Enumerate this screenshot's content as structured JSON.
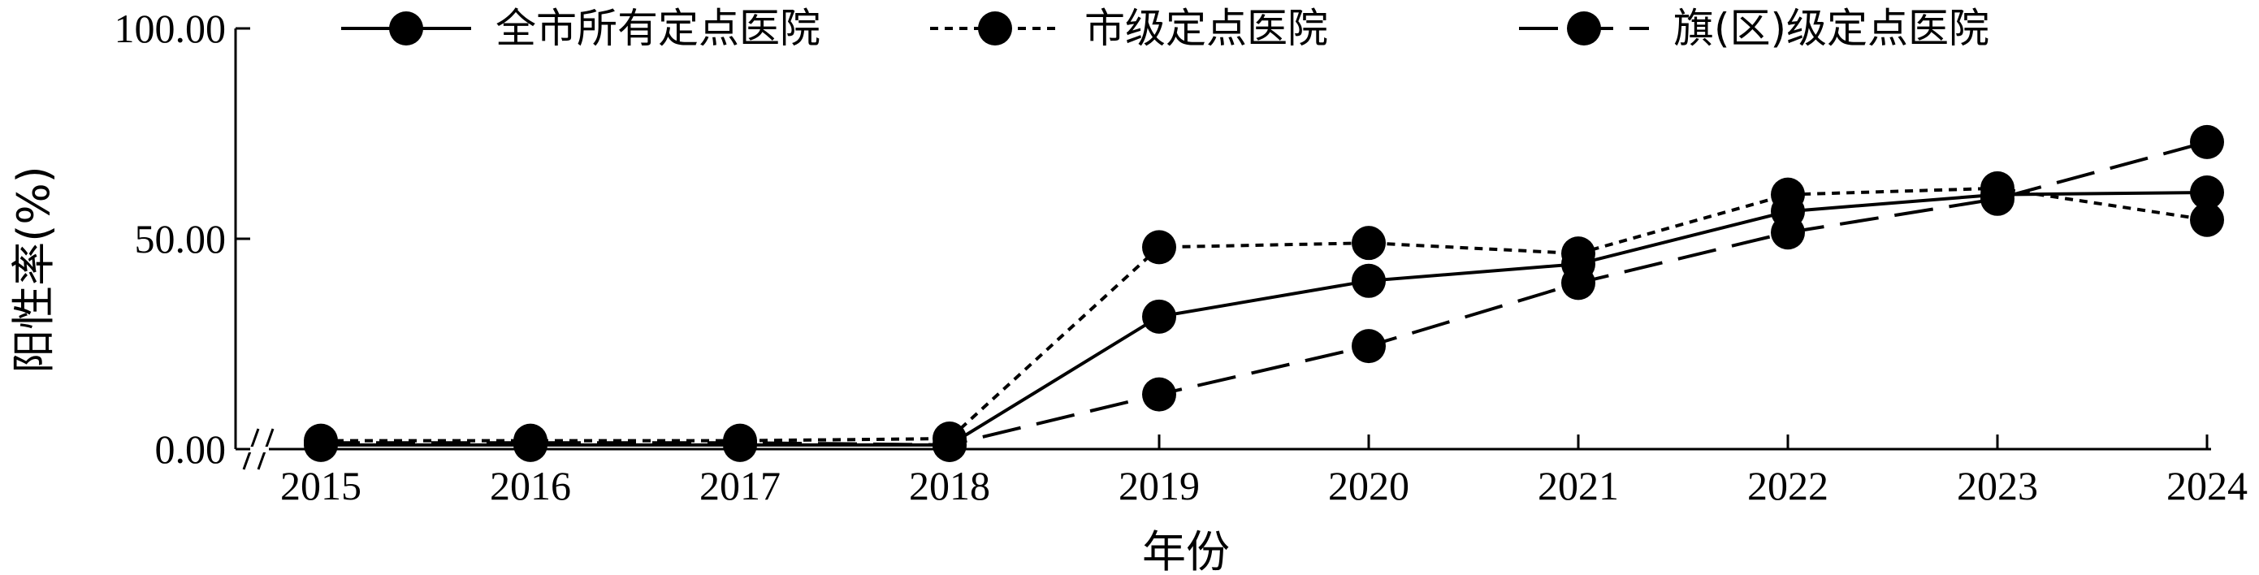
{
  "chart_data": {
    "type": "line",
    "xlabel": "年份",
    "ylabel": "阳性率(%)",
    "categories": [
      "2015",
      "2016",
      "2017",
      "2018",
      "2019",
      "2020",
      "2021",
      "2022",
      "2023",
      "2024"
    ],
    "ylim": [
      0,
      100
    ],
    "yticks": [
      "0.00",
      "50.00",
      "100.00"
    ],
    "axis_break": "y-axis near origin",
    "legend_position": "top",
    "series": [
      {
        "name": "全市所有定点医院",
        "style": "solid",
        "values": [
          1.0,
          1.0,
          1.0,
          1.0,
          31.5,
          40.0,
          44.0,
          56.5,
          60.5,
          61.0
        ]
      },
      {
        "name": "市级定点医院",
        "style": "dotted",
        "values": [
          2.0,
          2.0,
          2.0,
          2.5,
          48.0,
          49.0,
          46.5,
          60.5,
          62.0,
          54.5
        ]
      },
      {
        "name": "旗(区)级定点医院",
        "style": "dashed",
        "values": [
          1.5,
          1.5,
          1.5,
          1.0,
          13.0,
          24.5,
          39.5,
          51.5,
          59.5,
          73.0
        ]
      }
    ],
    "marker_color": "#000000"
  }
}
